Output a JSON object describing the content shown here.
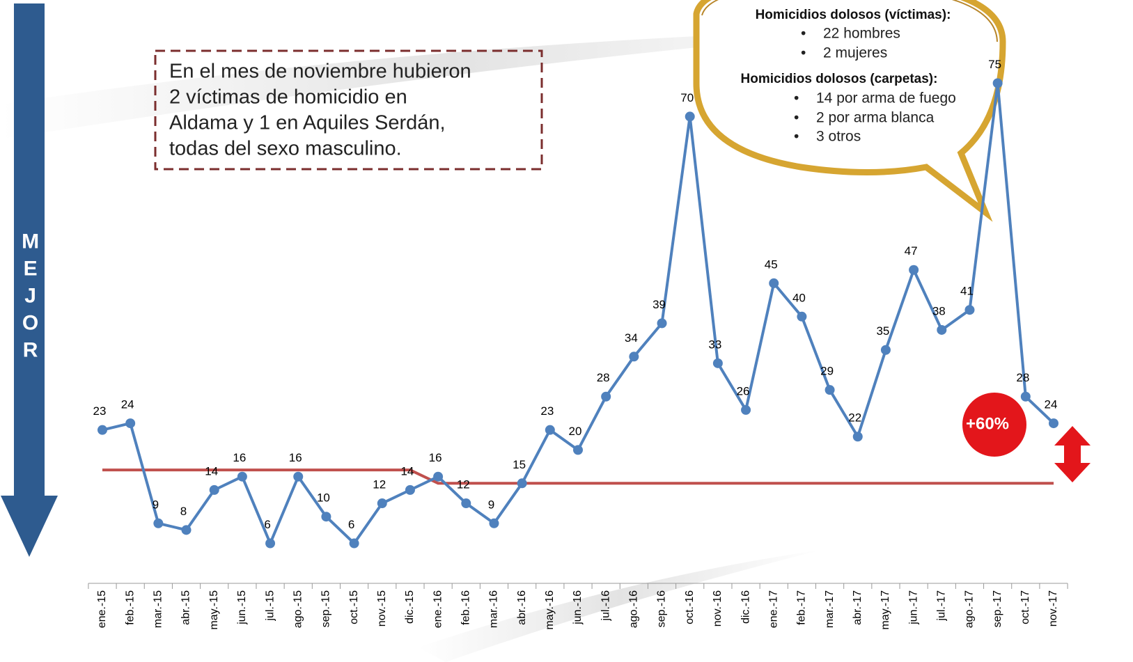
{
  "chart_data": {
    "type": "line",
    "categories": [
      "ene.-15",
      "feb.-15",
      "mar.-15",
      "abr.-15",
      "may.-15",
      "jun.-15",
      "jul.-15",
      "ago.-15",
      "sep.-15",
      "oct.-15",
      "nov.-15",
      "dic.-15",
      "ene.-16",
      "feb.-16",
      "mar.-16",
      "abr.-16",
      "may.-16",
      "jun.-16",
      "jul.-16",
      "ago.-16",
      "sep.-16",
      "oct.-16",
      "nov.-16",
      "dic.-16",
      "ene.-17",
      "feb.-17",
      "mar.-17",
      "abr.-17",
      "may.-17",
      "jun.-17",
      "jul.-17",
      "ago.-17",
      "sep.-17",
      "oct.-17",
      "nov.-17"
    ],
    "values": [
      23,
      24,
      9,
      8,
      14,
      16,
      6,
      16,
      10,
      6,
      12,
      14,
      16,
      12,
      9,
      15,
      23,
      20,
      28,
      34,
      39,
      70,
      33,
      26,
      45,
      40,
      29,
      22,
      35,
      47,
      38,
      41,
      75,
      28,
      24
    ],
    "color": "#4f81bd",
    "reference_line": {
      "color": "#c0504d",
      "values": [
        17,
        17,
        17,
        17,
        17,
        17,
        17,
        17,
        17,
        17,
        17,
        17,
        15,
        15,
        15,
        15,
        15,
        15,
        15,
        15,
        15,
        15,
        15,
        15,
        15,
        15,
        15,
        15,
        15,
        15,
        15,
        15,
        15,
        15,
        15
      ]
    },
    "ylim": [
      0,
      80
    ],
    "side_label": "MEJOR",
    "change_badge": "+60%",
    "note_box": {
      "lines": [
        "En el mes de noviembre hubieron",
        "2 víctimas de homicidio en",
        "Aldama y 1 en Aquiles Serdán,",
        "todas del sexo masculino."
      ]
    },
    "callout": {
      "victims_title": "Homicidios dolosos (víctimas):",
      "victims": [
        "22 hombres",
        "2  mujeres"
      ],
      "files_title": "Homicidios dolosos (carpetas):",
      "files": [
        "14  por arma de fuego",
        "2  por arma blanca",
        "3 otros"
      ]
    }
  }
}
